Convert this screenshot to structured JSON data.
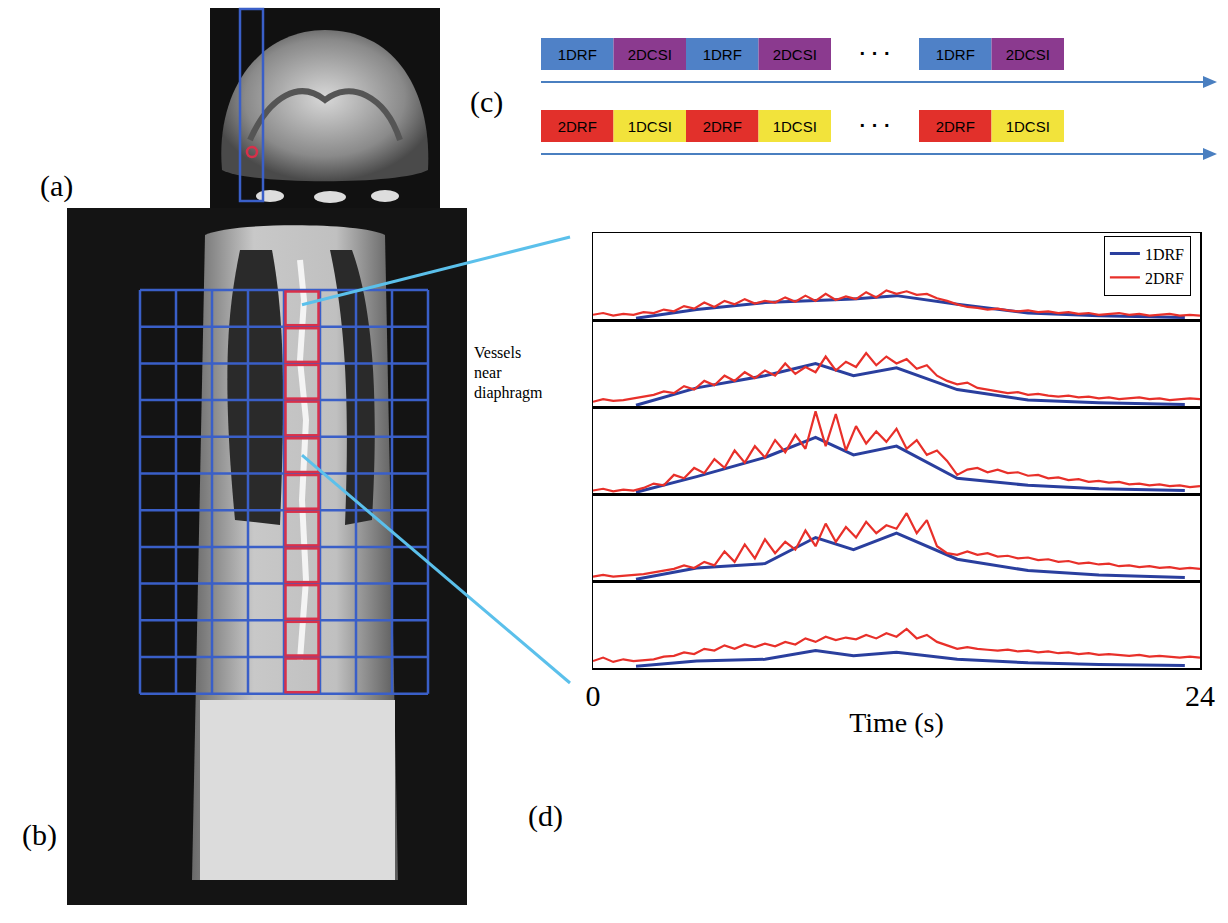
{
  "chart_data": [
    {
      "type": "line",
      "xlim": [
        0,
        24
      ],
      "ylim": [
        0,
        1
      ],
      "tick_labels": false,
      "legend": "upper right",
      "series": [
        {
          "name": "1DRF",
          "color": "#2a3f9e",
          "x": [
            1.7,
            4.1,
            6.8,
            8.8,
            10.3,
            12.0,
            14.4,
            17.2,
            20.0,
            23.4
          ],
          "values": [
            0.02,
            0.12,
            0.2,
            0.22,
            0.24,
            0.28,
            0.18,
            0.08,
            0.05,
            0.03
          ]
        },
        {
          "name": "2DRF",
          "color": "#e8302a",
          "x": [
            0,
            0.4,
            0.8,
            1.2,
            1.6,
            2,
            2.4,
            2.8,
            3.2,
            3.6,
            4,
            4.4,
            4.8,
            5.2,
            5.6,
            6,
            6.4,
            6.8,
            7.2,
            7.6,
            8,
            8.4,
            8.8,
            9.2,
            9.6,
            10,
            10.4,
            10.8,
            11.2,
            11.6,
            12,
            12.4,
            12.8,
            13.2,
            13.6,
            14,
            14.4,
            14.8,
            15.2,
            15.6,
            16,
            16.4,
            16.8,
            17.2,
            17.6,
            18,
            18.4,
            18.8,
            19.2,
            19.6,
            20,
            20.4,
            20.8,
            21.2,
            21.6,
            22,
            22.4,
            22.8,
            23.2,
            23.6,
            24
          ],
          "values": [
            0.06,
            0.08,
            0.05,
            0.07,
            0.06,
            0.09,
            0.08,
            0.12,
            0.1,
            0.16,
            0.13,
            0.2,
            0.15,
            0.22,
            0.18,
            0.24,
            0.19,
            0.22,
            0.2,
            0.26,
            0.21,
            0.28,
            0.22,
            0.3,
            0.23,
            0.27,
            0.24,
            0.32,
            0.26,
            0.34,
            0.3,
            0.33,
            0.29,
            0.3,
            0.25,
            0.22,
            0.18,
            0.15,
            0.14,
            0.12,
            0.13,
            0.11,
            0.1,
            0.11,
            0.09,
            0.1,
            0.08,
            0.09,
            0.07,
            0.08,
            0.06,
            0.07,
            0.08,
            0.06,
            0.07,
            0.05,
            0.06,
            0.07,
            0.05,
            0.06,
            0.05
          ]
        }
      ]
    },
    {
      "type": "line",
      "xlim": [
        0,
        24
      ],
      "ylim": [
        0,
        1
      ],
      "tick_labels": false,
      "series": [
        {
          "name": "1DRF",
          "color": "#2a3f9e",
          "x": [
            1.7,
            4.1,
            6.8,
            8.8,
            10.3,
            12.0,
            14.4,
            17.2,
            20.0,
            23.4
          ],
          "values": [
            0.02,
            0.22,
            0.36,
            0.5,
            0.36,
            0.45,
            0.2,
            0.08,
            0.05,
            0.03
          ]
        },
        {
          "name": "2DRF",
          "color": "#e8302a",
          "x": [
            0,
            0.4,
            0.8,
            1.2,
            1.6,
            2,
            2.4,
            2.8,
            3.2,
            3.6,
            4,
            4.4,
            4.8,
            5.2,
            5.6,
            6,
            6.4,
            6.8,
            7.2,
            7.6,
            8,
            8.4,
            8.8,
            9.2,
            9.6,
            10,
            10.4,
            10.8,
            11.2,
            11.6,
            12,
            12.4,
            12.8,
            13.2,
            13.6,
            14,
            14.4,
            14.8,
            15.2,
            15.6,
            16,
            16.4,
            16.8,
            17.2,
            17.6,
            18,
            18.4,
            18.8,
            19.2,
            19.6,
            20,
            20.4,
            20.8,
            21.2,
            21.6,
            22,
            22.4,
            22.8,
            23.2,
            23.6,
            24
          ],
          "values": [
            0.06,
            0.09,
            0.07,
            0.08,
            0.1,
            0.12,
            0.14,
            0.18,
            0.16,
            0.24,
            0.2,
            0.3,
            0.25,
            0.36,
            0.3,
            0.4,
            0.33,
            0.42,
            0.36,
            0.5,
            0.38,
            0.46,
            0.4,
            0.58,
            0.42,
            0.52,
            0.46,
            0.62,
            0.48,
            0.58,
            0.5,
            0.55,
            0.44,
            0.48,
            0.36,
            0.3,
            0.26,
            0.28,
            0.22,
            0.2,
            0.18,
            0.16,
            0.17,
            0.14,
            0.15,
            0.13,
            0.12,
            0.13,
            0.11,
            0.12,
            0.1,
            0.11,
            0.09,
            0.1,
            0.11,
            0.09,
            0.1,
            0.08,
            0.09,
            0.1,
            0.09
          ]
        }
      ]
    },
    {
      "type": "line",
      "xlim": [
        0,
        24
      ],
      "ylim": [
        0,
        1
      ],
      "tick_labels": false,
      "series": [
        {
          "name": "1DRF",
          "color": "#2a3f9e",
          "x": [
            1.7,
            4.1,
            6.8,
            8.8,
            10.3,
            12.0,
            14.4,
            17.2,
            20.0,
            23.4
          ],
          "values": [
            0.02,
            0.2,
            0.42,
            0.65,
            0.45,
            0.55,
            0.18,
            0.1,
            0.06,
            0.04
          ]
        },
        {
          "name": "2DRF",
          "color": "#e8302a",
          "x": [
            0,
            0.4,
            0.8,
            1.2,
            1.6,
            2,
            2.4,
            2.8,
            3.2,
            3.6,
            4,
            4.4,
            4.8,
            5.2,
            5.6,
            6,
            6.4,
            6.8,
            7.2,
            7.6,
            8,
            8.4,
            8.8,
            9.2,
            9.6,
            10,
            10.4,
            10.8,
            11.2,
            11.6,
            12,
            12.4,
            12.8,
            13.2,
            13.6,
            14,
            14.4,
            14.8,
            15.2,
            15.6,
            16,
            16.4,
            16.8,
            17.2,
            17.6,
            18,
            18.4,
            18.8,
            19.2,
            19.6,
            20,
            20.4,
            20.8,
            21.2,
            21.6,
            22,
            22.4,
            22.8,
            23.2,
            23.6,
            24
          ],
          "values": [
            0.04,
            0.06,
            0.03,
            0.05,
            0.04,
            0.07,
            0.12,
            0.1,
            0.22,
            0.18,
            0.3,
            0.24,
            0.4,
            0.3,
            0.5,
            0.36,
            0.55,
            0.42,
            0.62,
            0.48,
            0.68,
            0.52,
            0.95,
            0.55,
            0.92,
            0.5,
            0.78,
            0.58,
            0.72,
            0.6,
            0.75,
            0.52,
            0.62,
            0.45,
            0.5,
            0.38,
            0.22,
            0.28,
            0.3,
            0.25,
            0.28,
            0.24,
            0.25,
            0.21,
            0.22,
            0.18,
            0.19,
            0.16,
            0.17,
            0.14,
            0.15,
            0.13,
            0.14,
            0.11,
            0.12,
            0.1,
            0.11,
            0.09,
            0.1,
            0.08,
            0.09
          ]
        }
      ]
    },
    {
      "type": "line",
      "xlim": [
        0,
        24
      ],
      "ylim": [
        0,
        1
      ],
      "tick_labels": false,
      "series": [
        {
          "name": "1DRF",
          "color": "#2a3f9e",
          "x": [
            1.7,
            4.1,
            6.8,
            8.8,
            10.3,
            12.0,
            14.4,
            17.2,
            20.0,
            23.4
          ],
          "values": [
            0.02,
            0.15,
            0.2,
            0.5,
            0.36,
            0.55,
            0.25,
            0.12,
            0.07,
            0.04
          ]
        },
        {
          "name": "2DRF",
          "color": "#e8302a",
          "x": [
            0,
            0.4,
            0.8,
            1.2,
            1.6,
            2,
            2.4,
            2.8,
            3.2,
            3.6,
            4,
            4.4,
            4.8,
            5.2,
            5.6,
            6,
            6.4,
            6.8,
            7.2,
            7.6,
            8,
            8.4,
            8.8,
            9.2,
            9.6,
            10,
            10.4,
            10.8,
            11.2,
            11.6,
            12,
            12.4,
            12.8,
            13.2,
            13.6,
            14,
            14.4,
            14.8,
            15.2,
            15.6,
            16,
            16.4,
            16.8,
            17.2,
            17.6,
            18,
            18.4,
            18.8,
            19.2,
            19.6,
            20,
            20.4,
            20.8,
            21.2,
            21.6,
            22,
            22.4,
            22.8,
            23.2,
            23.6,
            24
          ],
          "values": [
            0.05,
            0.07,
            0.05,
            0.06,
            0.07,
            0.08,
            0.1,
            0.12,
            0.14,
            0.18,
            0.15,
            0.22,
            0.18,
            0.34,
            0.22,
            0.42,
            0.26,
            0.48,
            0.32,
            0.45,
            0.36,
            0.58,
            0.4,
            0.66,
            0.45,
            0.62,
            0.5,
            0.68,
            0.55,
            0.64,
            0.6,
            0.78,
            0.55,
            0.7,
            0.4,
            0.32,
            0.3,
            0.34,
            0.3,
            0.32,
            0.28,
            0.29,
            0.26,
            0.27,
            0.24,
            0.25,
            0.22,
            0.23,
            0.2,
            0.21,
            0.19,
            0.2,
            0.17,
            0.18,
            0.16,
            0.17,
            0.15,
            0.16,
            0.14,
            0.15,
            0.14
          ]
        }
      ]
    },
    {
      "type": "line",
      "xlim": [
        0,
        24
      ],
      "ylim": [
        0,
        1
      ],
      "xticks": [
        0,
        24
      ],
      "x_label": "Time (s)",
      "tick_labels": "x",
      "series": [
        {
          "name": "1DRF",
          "color": "#2a3f9e",
          "x": [
            1.7,
            4.1,
            6.8,
            8.8,
            10.3,
            12.0,
            14.4,
            17.2,
            20.0,
            23.4
          ],
          "values": [
            0.02,
            0.08,
            0.1,
            0.2,
            0.14,
            0.18,
            0.1,
            0.06,
            0.04,
            0.03
          ]
        },
        {
          "name": "2DRF",
          "color": "#e8302a",
          "x": [
            0,
            0.4,
            0.8,
            1.2,
            1.6,
            2,
            2.4,
            2.8,
            3.2,
            3.6,
            4,
            4.4,
            4.8,
            5.2,
            5.6,
            6,
            6.4,
            6.8,
            7.2,
            7.6,
            8,
            8.4,
            8.8,
            9.2,
            9.6,
            10,
            10.4,
            10.8,
            11.2,
            11.6,
            12,
            12.4,
            12.8,
            13.2,
            13.6,
            14,
            14.4,
            14.8,
            15.2,
            15.6,
            16,
            16.4,
            16.8,
            17.2,
            17.6,
            18,
            18.4,
            18.8,
            19.2,
            19.6,
            20,
            20.4,
            20.8,
            21.2,
            21.6,
            22,
            22.4,
            22.8,
            23.2,
            23.6,
            24
          ],
          "values": [
            0.08,
            0.12,
            0.07,
            0.1,
            0.08,
            0.09,
            0.1,
            0.13,
            0.14,
            0.18,
            0.16,
            0.22,
            0.2,
            0.26,
            0.22,
            0.27,
            0.24,
            0.28,
            0.25,
            0.3,
            0.27,
            0.34,
            0.3,
            0.36,
            0.32,
            0.35,
            0.33,
            0.38,
            0.34,
            0.4,
            0.36,
            0.45,
            0.34,
            0.38,
            0.3,
            0.26,
            0.22,
            0.24,
            0.22,
            0.21,
            0.2,
            0.21,
            0.19,
            0.2,
            0.18,
            0.19,
            0.17,
            0.18,
            0.16,
            0.17,
            0.15,
            0.16,
            0.15,
            0.14,
            0.15,
            0.13,
            0.14,
            0.13,
            0.12,
            0.13,
            0.12
          ]
        }
      ]
    }
  ],
  "figure": {
    "panel_labels": {
      "a": "(a)",
      "b": "(b)",
      "c": "(c)",
      "d": "(d)"
    },
    "annotation": "Vessels near diaphragm",
    "grid": {
      "columns": 8,
      "rows": 11,
      "highlight_column": 5,
      "color": "#3a5fc8",
      "highlight_color": "#d8304a"
    },
    "sequence_diagram": {
      "rows": [
        {
          "items": [
            {
              "label": "1DRF",
              "color": "#4f81c7"
            },
            {
              "label": "2DCSI",
              "color": "#8b3a8f"
            },
            {
              "label": "1DRF",
              "color": "#4f81c7"
            },
            {
              "label": "2DCSI",
              "color": "#8b3a8f"
            },
            {
              "label": "· · ·"
            },
            {
              "label": "1DRF",
              "color": "#4f81c7"
            },
            {
              "label": "2DCSI",
              "color": "#8b3a8f"
            }
          ]
        },
        {
          "items": [
            {
              "label": "2DRF",
              "color": "#e2302b"
            },
            {
              "label": "1DCSI",
              "color": "#f2e33b"
            },
            {
              "label": "2DRF",
              "color": "#e2302b"
            },
            {
              "label": "1DCSI",
              "color": "#f2e33b"
            },
            {
              "label": "· · ·"
            },
            {
              "label": "2DRF",
              "color": "#e2302b"
            },
            {
              "label": "1DCSI",
              "color": "#f2e33b"
            }
          ]
        }
      ]
    }
  }
}
